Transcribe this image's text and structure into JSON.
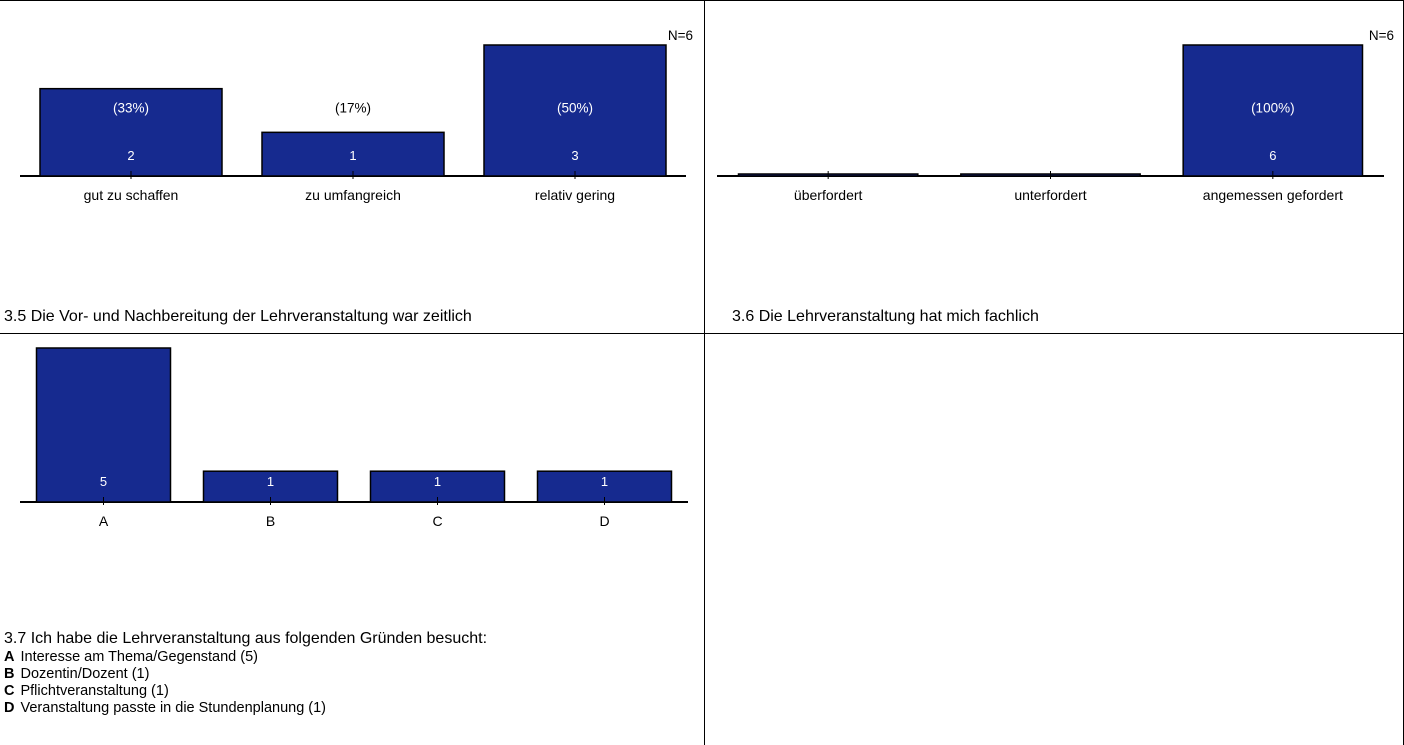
{
  "chart_data": [
    {
      "type": "bar",
      "title": "3.5 Die Vor- und Nachbereitung der Lehrveranstaltung war zeitlich",
      "n_label": "N=6",
      "categories": [
        "gut zu schaffen",
        "zu umfangreich",
        "relativ gering"
      ],
      "values": [
        2,
        1,
        3
      ],
      "percent_labels": [
        "(33%)",
        "(17%)",
        "(50%)"
      ],
      "ylim": [
        0,
        3
      ],
      "bar_color": "#162a8f"
    },
    {
      "type": "bar",
      "title": "3.6 Die Lehrveranstaltung hat mich fachlich",
      "n_label": "N=6",
      "categories": [
        "überfordert",
        "unterfordert",
        "angemessen gefordert"
      ],
      "values": [
        0,
        0,
        6
      ],
      "percent_labels": [
        "",
        "",
        "(100%)"
      ],
      "ylim": [
        0,
        6
      ],
      "bar_color": "#162a8f"
    },
    {
      "type": "bar",
      "title": "3.7 Ich habe die Lehrveranstaltung aus folgenden Gründen besucht:",
      "categories": [
        "A",
        "B",
        "C",
        "D"
      ],
      "values": [
        5,
        1,
        1,
        1
      ],
      "ylim": [
        0,
        5
      ],
      "bar_color": "#162a8f",
      "legend": [
        {
          "key": "A",
          "text": "Interesse am Thema/Gegenstand (5)"
        },
        {
          "key": "B",
          "text": "Dozentin/Dozent (1)"
        },
        {
          "key": "C",
          "text": "Pflichtveranstaltung (1)"
        },
        {
          "key": "D",
          "text": "Veranstaltung passte in die Stundenplanung (1)"
        }
      ]
    }
  ]
}
